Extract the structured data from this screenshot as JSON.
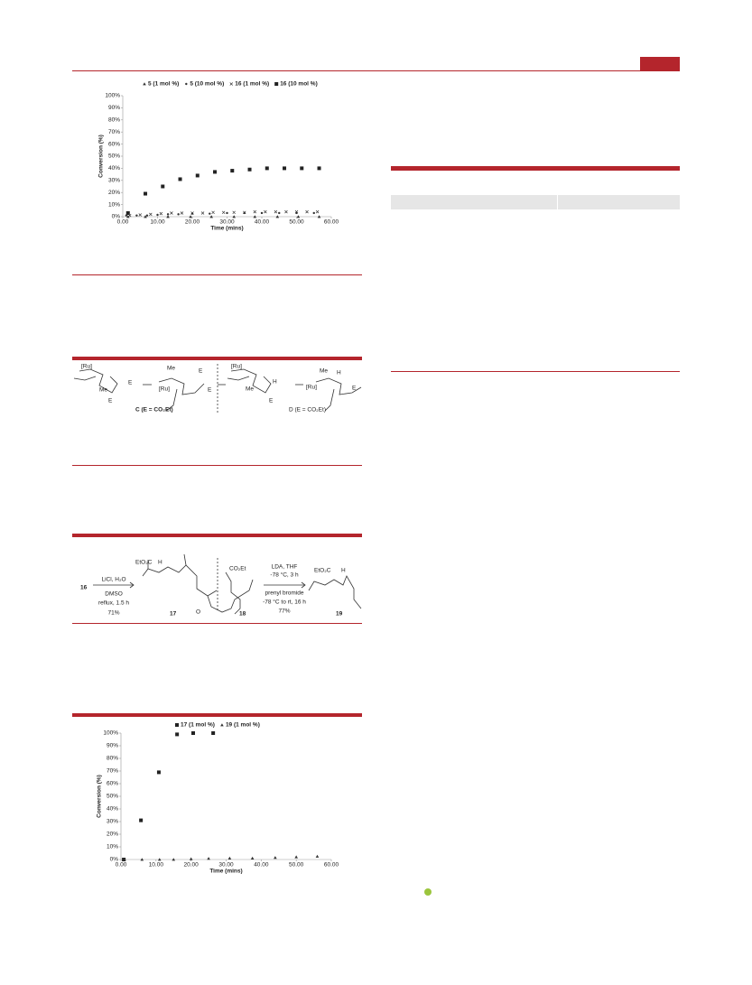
{
  "chart_data": [
    {
      "type": "scatter",
      "xlabel": "Time (mins)",
      "ylabel": "Conversion (%)",
      "xlim": [
        0,
        60
      ],
      "ylim": [
        0,
        100
      ],
      "xticks": [
        {
          "value": 0,
          "label": "0.00"
        },
        {
          "value": 10,
          "label": "10.00"
        },
        {
          "value": 20,
          "label": "20.00"
        },
        {
          "value": 30,
          "label": "30.00"
        },
        {
          "value": 40,
          "label": "40.00"
        },
        {
          "value": 50,
          "label": "50.00"
        },
        {
          "value": 60,
          "label": "60.00"
        }
      ],
      "yticks": [
        {
          "value": 0,
          "label": "0%"
        },
        {
          "value": 10,
          "label": "10%"
        },
        {
          "value": 20,
          "label": "20%"
        },
        {
          "value": 30,
          "label": "30%"
        },
        {
          "value": 40,
          "label": "40%"
        },
        {
          "value": 50,
          "label": "50%"
        },
        {
          "value": 60,
          "label": "60%"
        },
        {
          "value": 70,
          "label": "70%"
        },
        {
          "value": 80,
          "label": "80%"
        },
        {
          "value": 90,
          "label": "90%"
        },
        {
          "value": 100,
          "label": "100%"
        }
      ],
      "series": [
        {
          "name": "5 (1 mol %)",
          "color": "#333333",
          "marker": "triangle",
          "x": [
            1.5,
            6.5,
            13,
            19.5,
            25.5,
            32,
            38,
            44.5,
            50.5,
            56.5
          ],
          "values": [
            0,
            0,
            0,
            0,
            0,
            0,
            0,
            0,
            0,
            0
          ]
        },
        {
          "name": "5 (10 mol %)",
          "color": "#333333",
          "marker": "dot",
          "x": [
            1,
            4,
            7,
            10,
            13,
            16,
            20,
            25,
            30,
            35,
            40,
            45,
            50,
            55
          ],
          "values": [
            1,
            1,
            1,
            1.5,
            2,
            2,
            2.5,
            2.5,
            3,
            3,
            3,
            3,
            3,
            3
          ]
        },
        {
          "name": "16 (1 mol %)",
          "color": "#333333",
          "marker": "x",
          "x": [
            2,
            5,
            8,
            11,
            14,
            17,
            20,
            23,
            26,
            29,
            32,
            35,
            38,
            41,
            44,
            47,
            50,
            53,
            56
          ],
          "values": [
            1,
            1.5,
            2,
            2.5,
            3,
            3,
            3,
            3,
            3.5,
            3.5,
            3.5,
            3.5,
            4,
            4,
            4,
            4,
            4,
            4,
            4
          ]
        },
        {
          "name": "16 (10 mol %)",
          "color": "#222222",
          "marker": "square",
          "x": [
            1.5,
            6.5,
            11.5,
            16.5,
            21.5,
            26.5,
            31.5,
            36.5,
            41.5,
            46.5,
            51.5,
            56.5
          ],
          "values": [
            3,
            19,
            25,
            31,
            34,
            37,
            38,
            39,
            40,
            40,
            40,
            40
          ]
        }
      ]
    },
    {
      "type": "scatter",
      "xlabel": "Time (mins)",
      "ylabel": "Conversion (%)",
      "xlim": [
        0,
        60
      ],
      "ylim": [
        0,
        100
      ],
      "xticks": [
        {
          "value": 0,
          "label": "0.00"
        },
        {
          "value": 10,
          "label": "10.00"
        },
        {
          "value": 20,
          "label": "20.00"
        },
        {
          "value": 30,
          "label": "30.00"
        },
        {
          "value": 40,
          "label": "40.00"
        },
        {
          "value": 50,
          "label": "50.00"
        },
        {
          "value": 60,
          "label": "60.00"
        }
      ],
      "yticks": [
        {
          "value": 0,
          "label": "0%"
        },
        {
          "value": 10,
          "label": "10%"
        },
        {
          "value": 20,
          "label": "20%"
        },
        {
          "value": 30,
          "label": "30%"
        },
        {
          "value": 40,
          "label": "40%"
        },
        {
          "value": 50,
          "label": "50%"
        },
        {
          "value": 60,
          "label": "60%"
        },
        {
          "value": 70,
          "label": "70%"
        },
        {
          "value": 80,
          "label": "80%"
        },
        {
          "value": 90,
          "label": "90%"
        },
        {
          "value": 100,
          "label": "100%"
        }
      ],
      "series": [
        {
          "name": "17 (1 mol %)",
          "color": "#222222",
          "marker": "square",
          "x": [
            0.8,
            5.7,
            10.8,
            16,
            20.6,
            26.3
          ],
          "values": [
            0,
            31,
            69,
            99,
            100,
            100
          ]
        },
        {
          "name": "19 (1 mol %)",
          "color": "#333333",
          "marker": "triangle",
          "x": [
            1,
            6,
            11,
            15,
            20,
            25,
            31,
            37.5,
            44,
            50,
            56
          ],
          "values": [
            0,
            0,
            0,
            0,
            0.5,
            0.8,
            1,
            1,
            1.5,
            2,
            2.5
          ]
        }
      ]
    }
  ],
  "scheme_1": {
    "labels": [
      "[Ru]",
      "Me",
      "E",
      "E",
      "[Ru]",
      "Me",
      "E",
      "E",
      "C (E = CO₂Et)",
      "[Ru]",
      "Me",
      "H",
      "E",
      "[Ru]",
      "Me",
      "H",
      "E",
      "D (E = CO₂Et)"
    ]
  },
  "scheme_2": {
    "labels": [
      "16",
      "LiCl, H₂O",
      "DMSO",
      "reflux, 1.5 h",
      "71%",
      "EtO₂C",
      "H",
      "17",
      "O",
      "CO₂Et",
      "18",
      "LDA, THF",
      "-78 °C, 3 h",
      "prenyl bromide",
      "-78 °C to rt, 16 h",
      "77%",
      "EtO₂C",
      "H",
      "19"
    ]
  }
}
